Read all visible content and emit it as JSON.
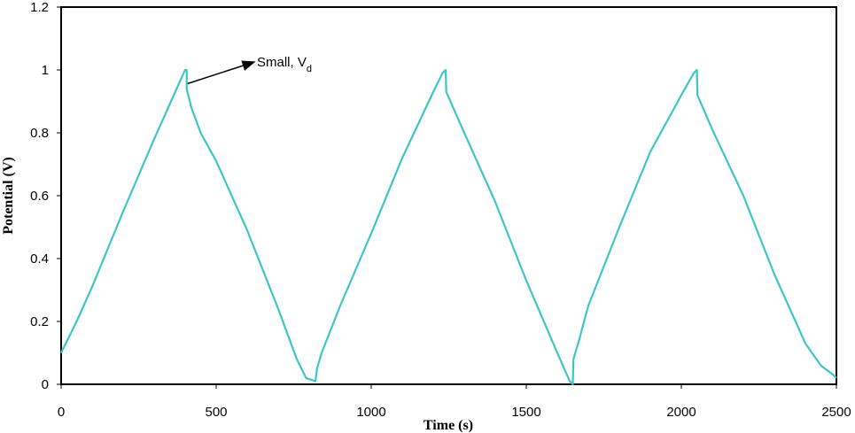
{
  "chart_data": {
    "type": "line",
    "x_label": "Time (s)",
    "y_label": "Potential (V)",
    "annotation": {
      "text": "Small,  V",
      "subscript": "d"
    },
    "xlim": [
      0,
      2500
    ],
    "xticks": [
      0,
      500,
      1000,
      1500,
      2000,
      2500
    ],
    "ylim": [
      0,
      1.2
    ],
    "yticks": [
      0,
      0.2,
      0.4,
      0.6,
      0.8,
      1,
      1.2
    ],
    "grid": false,
    "series": [
      {
        "color": "#3ec6c6",
        "x": [
          0,
          10,
          50,
          100,
          200,
          300,
          395,
          400,
          405,
          405,
          420,
          450,
          500,
          600,
          700,
          760,
          790,
          820,
          825,
          840,
          900,
          1000,
          1100,
          1200,
          1230,
          1240,
          1242,
          1300,
          1400,
          1500,
          1600,
          1640,
          1650,
          1652,
          1670,
          1700,
          1800,
          1900,
          2000,
          2040,
          2050,
          2052,
          2100,
          2200,
          2300,
          2400,
          2450,
          2490,
          2500
        ],
        "values": [
          0.1,
          0.12,
          0.2,
          0.31,
          0.55,
          0.78,
          0.99,
          1.0,
          1.0,
          0.94,
          0.88,
          0.8,
          0.71,
          0.49,
          0.24,
          0.08,
          0.02,
          0.01,
          0.05,
          0.1,
          0.25,
          0.48,
          0.72,
          0.93,
          0.99,
          1.0,
          0.93,
          0.8,
          0.58,
          0.33,
          0.1,
          0.01,
          0.0,
          0.08,
          0.14,
          0.25,
          0.5,
          0.74,
          0.92,
          0.99,
          1.0,
          0.92,
          0.81,
          0.6,
          0.35,
          0.13,
          0.06,
          0.03,
          0.02
        ]
      }
    ]
  }
}
